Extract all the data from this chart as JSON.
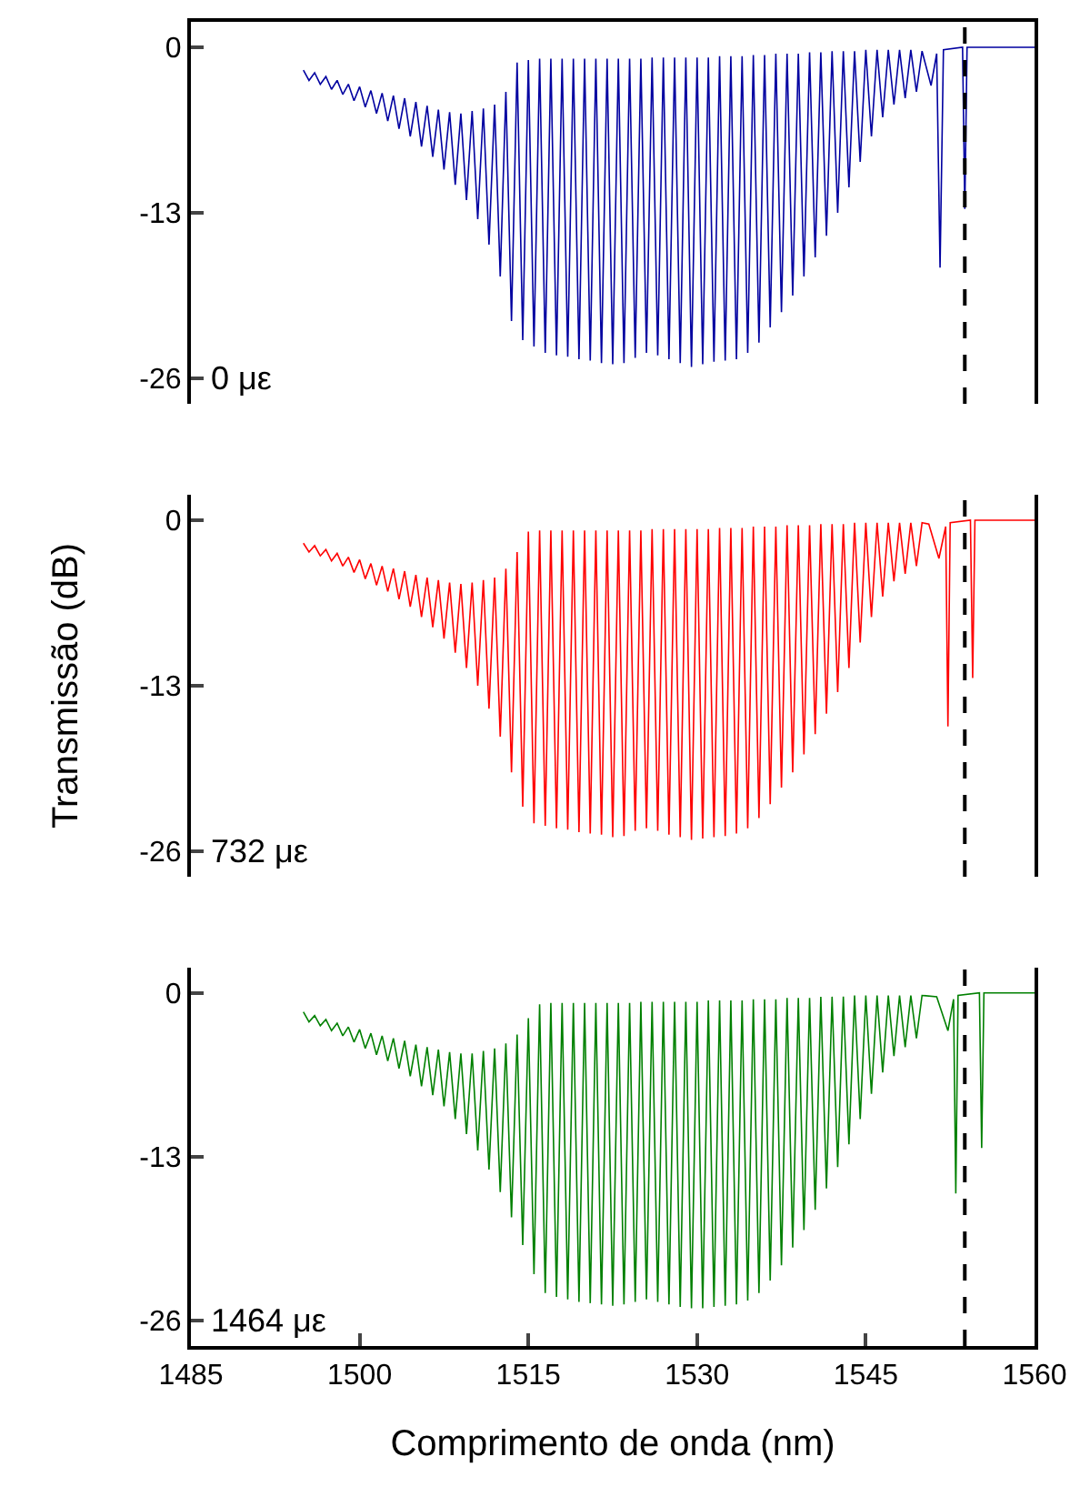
{
  "chart_data": [
    {
      "type": "line",
      "annotations": [
        "0 με"
      ],
      "xlim": [
        1485,
        1560
      ],
      "xticks": [
        1485,
        1500,
        1515,
        1530,
        1545,
        1560
      ],
      "ylim": [
        -28,
        2
      ],
      "yticks": [
        0,
        -13,
        -26
      ],
      "tick_labels": "y",
      "marker": "none",
      "line_style": "solid",
      "ref_lines": [
        {
          "axis": "x",
          "value": 1553.8,
          "color": "#000000",
          "line_style": "dashed"
        }
      ],
      "series": [
        {
          "color": "#0000a0",
          "x": [
            1495,
            1495.5,
            1496,
            1496.5,
            1497,
            1497.5,
            1498,
            1498.5,
            1499,
            1499.5,
            1500,
            1500.5,
            1501,
            1501.5,
            1502,
            1502.5,
            1503,
            1503.5,
            1504,
            1504.5,
            1505,
            1505.5,
            1506,
            1506.5,
            1507,
            1507.5,
            1508,
            1508.5,
            1509,
            1509.5,
            1510,
            1510.5,
            1511,
            1511.5,
            1512,
            1512.5,
            1513,
            1513.5,
            1514,
            1514.5,
            1515,
            1515.5,
            1516,
            1516.5,
            1517,
            1517.5,
            1518,
            1518.5,
            1519,
            1519.5,
            1520,
            1520.5,
            1521,
            1521.5,
            1522,
            1522.5,
            1523,
            1523.5,
            1524,
            1524.5,
            1525,
            1525.5,
            1526,
            1526.5,
            1527,
            1527.5,
            1528,
            1528.5,
            1529,
            1529.5,
            1530,
            1530.5,
            1531,
            1531.5,
            1532,
            1532.5,
            1533,
            1533.5,
            1534,
            1534.5,
            1535,
            1535.5,
            1536,
            1536.5,
            1537,
            1537.5,
            1538,
            1538.5,
            1539,
            1539.5,
            1540,
            1540.5,
            1541,
            1541.5,
            1542,
            1542.5,
            1543,
            1543.5,
            1544,
            1544.5,
            1545,
            1545.5,
            1546,
            1546.5,
            1547,
            1547.5,
            1548,
            1548.5,
            1549,
            1549.5,
            1550,
            1550.8,
            1551.3,
            1551.6,
            1551.9,
            1553.6,
            1553.8,
            1554,
            1560
          ],
          "values": [
            -1.8,
            -2.6,
            -2,
            -2.9,
            -2.3,
            -3.3,
            -2.6,
            -3.7,
            -2.9,
            -4.2,
            -3.1,
            -4.7,
            -3.4,
            -5.2,
            -3.6,
            -5.8,
            -3.8,
            -6.4,
            -4,
            -7,
            -4.3,
            -7.8,
            -4.6,
            -8.6,
            -4.9,
            -9.6,
            -5.1,
            -10.8,
            -5.2,
            -12,
            -5,
            -13.5,
            -4.8,
            -15.5,
            -4.5,
            -18,
            -3.5,
            -21.5,
            -1.2,
            -23,
            -1,
            -23.5,
            -0.9,
            -24,
            -0.9,
            -24.2,
            -0.9,
            -24.3,
            -0.9,
            -24.5,
            -0.9,
            -24.6,
            -0.9,
            -24.8,
            -0.9,
            -24.9,
            -0.9,
            -24.8,
            -0.9,
            -24.4,
            -0.9,
            -24,
            -0.8,
            -24.2,
            -0.8,
            -24.5,
            -0.8,
            -24.8,
            -0.8,
            -25.1,
            -0.8,
            -24.9,
            -0.8,
            -24.7,
            -0.7,
            -24.6,
            -0.7,
            -24.5,
            -0.7,
            -24,
            -0.6,
            -23.2,
            -0.6,
            -22,
            -0.5,
            -20.8,
            -0.5,
            -19.5,
            -0.5,
            -18,
            -0.4,
            -16.5,
            -0.4,
            -14.8,
            -0.3,
            -13,
            -0.3,
            -11,
            -0.3,
            -9,
            -0.2,
            -7,
            -0.2,
            -5.5,
            -0.2,
            -4.5,
            -0.2,
            -4,
            -0.2,
            -3.5,
            -0.3,
            -3,
            -0.5,
            -17.3,
            -0.2,
            0,
            -12.7,
            0,
            0
          ]
        }
      ]
    },
    {
      "type": "line",
      "annotations": [
        "732 με"
      ],
      "ylabel": "Transmissão (dB)",
      "xlim": [
        1485,
        1560
      ],
      "xticks": [
        1485,
        1500,
        1515,
        1530,
        1545,
        1560
      ],
      "ylim": [
        -28,
        2
      ],
      "yticks": [
        0,
        -13,
        -26
      ],
      "tick_labels": "y",
      "marker": "none",
      "line_style": "solid",
      "ref_lines": [
        {
          "axis": "x",
          "value": 1553.8,
          "color": "#000000",
          "line_style": "dashed"
        }
      ],
      "series": [
        {
          "color": "#ff0000",
          "x": [
            1495,
            1495.5,
            1496,
            1496.5,
            1497,
            1497.5,
            1498,
            1498.5,
            1499,
            1499.5,
            1500,
            1500.5,
            1501,
            1501.5,
            1502,
            1502.5,
            1503,
            1503.5,
            1504,
            1504.5,
            1505,
            1505.5,
            1506,
            1506.5,
            1507,
            1507.5,
            1508,
            1508.5,
            1509,
            1509.5,
            1510,
            1510.5,
            1511,
            1511.5,
            1512,
            1512.5,
            1513,
            1513.5,
            1514,
            1514.5,
            1515,
            1515.5,
            1516,
            1516.5,
            1517,
            1517.5,
            1518,
            1518.5,
            1519,
            1519.5,
            1520,
            1520.5,
            1521,
            1521.5,
            1522,
            1522.5,
            1523,
            1523.5,
            1524,
            1524.5,
            1525,
            1525.5,
            1526,
            1526.5,
            1527,
            1527.5,
            1528,
            1528.5,
            1529,
            1529.5,
            1530,
            1530.5,
            1531,
            1531.5,
            1532,
            1532.5,
            1533,
            1533.5,
            1534,
            1534.5,
            1535,
            1535.5,
            1536,
            1536.5,
            1537,
            1537.5,
            1538,
            1538.5,
            1539,
            1539.5,
            1540,
            1540.5,
            1541,
            1541.5,
            1542,
            1542.5,
            1543,
            1543.5,
            1544,
            1544.5,
            1545,
            1545.5,
            1546,
            1546.5,
            1547,
            1547.5,
            1548,
            1548.5,
            1549,
            1549.5,
            1550,
            1550.6,
            1551.5,
            1552.1,
            1552.3,
            1552.5,
            1554.3,
            1554.5,
            1554.7,
            1560
          ],
          "values": [
            -1.8,
            -2.5,
            -2,
            -2.8,
            -2.3,
            -3.2,
            -2.6,
            -3.6,
            -2.9,
            -4.1,
            -3.1,
            -4.6,
            -3.4,
            -5.1,
            -3.6,
            -5.6,
            -3.8,
            -6.2,
            -4,
            -6.8,
            -4.3,
            -7.6,
            -4.5,
            -8.4,
            -4.7,
            -9.3,
            -4.9,
            -10.4,
            -5,
            -11.6,
            -4.9,
            -13,
            -4.7,
            -14.8,
            -4.5,
            -17,
            -3.8,
            -19.8,
            -2.5,
            -22.5,
            -0.9,
            -23.8,
            -0.8,
            -24,
            -0.8,
            -24.2,
            -0.8,
            -24.3,
            -0.8,
            -24.5,
            -0.8,
            -24.6,
            -0.8,
            -24.7,
            -0.8,
            -24.9,
            -0.8,
            -24.8,
            -0.8,
            -24.4,
            -0.8,
            -24.2,
            -0.7,
            -24.4,
            -0.7,
            -24.7,
            -0.7,
            -24.9,
            -0.7,
            -25.1,
            -0.7,
            -25,
            -0.7,
            -24.9,
            -0.6,
            -24.8,
            -0.6,
            -24.6,
            -0.6,
            -24.2,
            -0.5,
            -23.4,
            -0.5,
            -22.3,
            -0.5,
            -21,
            -0.4,
            -19.8,
            -0.4,
            -18.4,
            -0.4,
            -16.8,
            -0.3,
            -15.2,
            -0.3,
            -13.5,
            -0.3,
            -11.6,
            -0.2,
            -9.6,
            -0.2,
            -7.6,
            -0.2,
            -6,
            -0.2,
            -4.8,
            -0.2,
            -4.2,
            -0.2,
            -3.6,
            -0.2,
            -0.3,
            -3,
            -0.5,
            -16.2,
            -0.2,
            0,
            -12.4,
            0,
            0
          ]
        }
      ]
    },
    {
      "type": "line",
      "annotations": [
        "1464 με"
      ],
      "xlabel": "Comprimento de onda (nm)",
      "xlim": [
        1485,
        1560
      ],
      "xticks": [
        1485,
        1500,
        1515,
        1530,
        1545,
        1560
      ],
      "ylim": [
        -28,
        2
      ],
      "yticks": [
        0,
        -13,
        -26
      ],
      "marker": "none",
      "line_style": "solid",
      "ref_lines": [
        {
          "axis": "x",
          "value": 1553.8,
          "color": "#000000",
          "line_style": "dashed"
        }
      ],
      "series": [
        {
          "color": "#008000",
          "x": [
            1495,
            1495.5,
            1496,
            1496.5,
            1497,
            1497.5,
            1498,
            1498.5,
            1499,
            1499.5,
            1500,
            1500.5,
            1501,
            1501.5,
            1502,
            1502.5,
            1503,
            1503.5,
            1504,
            1504.5,
            1505,
            1505.5,
            1506,
            1506.5,
            1507,
            1507.5,
            1508,
            1508.5,
            1509,
            1509.5,
            1510,
            1510.5,
            1511,
            1511.5,
            1512,
            1512.5,
            1513,
            1513.5,
            1514,
            1514.5,
            1515,
            1515.5,
            1516,
            1516.5,
            1517,
            1517.5,
            1518,
            1518.5,
            1519,
            1519.5,
            1520,
            1520.5,
            1521,
            1521.5,
            1522,
            1522.5,
            1523,
            1523.5,
            1524,
            1524.5,
            1525,
            1525.5,
            1526,
            1526.5,
            1527,
            1527.5,
            1528,
            1528.5,
            1529,
            1529.5,
            1530,
            1530.5,
            1531,
            1531.5,
            1532,
            1532.5,
            1533,
            1533.5,
            1534,
            1534.5,
            1535,
            1535.5,
            1536,
            1536.5,
            1537,
            1537.5,
            1538,
            1538.5,
            1539,
            1539.5,
            1540,
            1540.5,
            1541,
            1541.5,
            1542,
            1542.5,
            1543,
            1543.5,
            1544,
            1544.5,
            1545,
            1545.5,
            1546,
            1546.5,
            1547,
            1547.5,
            1548,
            1548.5,
            1549,
            1549.5,
            1550,
            1551.3,
            1552.3,
            1552.8,
            1553,
            1553.2,
            1555.1,
            1555.3,
            1555.5,
            1560
          ],
          "values": [
            -1.5,
            -2.3,
            -1.8,
            -2.6,
            -2.1,
            -3,
            -2.4,
            -3.4,
            -2.7,
            -3.9,
            -2.9,
            -4.4,
            -3.2,
            -4.9,
            -3.4,
            -5.4,
            -3.6,
            -6,
            -3.8,
            -6.6,
            -4.1,
            -7.4,
            -4.3,
            -8.1,
            -4.5,
            -9,
            -4.7,
            -10,
            -4.8,
            -11.2,
            -4.8,
            -12.5,
            -4.6,
            -14,
            -4.4,
            -15.8,
            -4,
            -17.8,
            -3.3,
            -20,
            -2,
            -22.3,
            -0.9,
            -23.8,
            -0.8,
            -24.1,
            -0.8,
            -24.3,
            -0.8,
            -24.5,
            -0.8,
            -24.6,
            -0.8,
            -24.7,
            -0.8,
            -24.8,
            -0.8,
            -24.7,
            -0.8,
            -24.5,
            -0.7,
            -24.3,
            -0.7,
            -24.5,
            -0.7,
            -24.7,
            -0.7,
            -24.9,
            -0.7,
            -25,
            -0.7,
            -25,
            -0.6,
            -24.9,
            -0.6,
            -24.8,
            -0.6,
            -24.7,
            -0.6,
            -24.4,
            -0.5,
            -23.8,
            -0.5,
            -22.8,
            -0.5,
            -21.6,
            -0.4,
            -20.2,
            -0.4,
            -18.8,
            -0.4,
            -17.2,
            -0.3,
            -15.5,
            -0.3,
            -13.8,
            -0.3,
            -12,
            -0.2,
            -10,
            -0.2,
            -8,
            -0.2,
            -6.3,
            -0.2,
            -5,
            -0.2,
            -4.3,
            -0.2,
            -3.6,
            -0.2,
            -0.3,
            -3,
            -0.5,
            -15.9,
            -0.2,
            0,
            -12.3,
            0,
            0
          ]
        }
      ]
    }
  ]
}
